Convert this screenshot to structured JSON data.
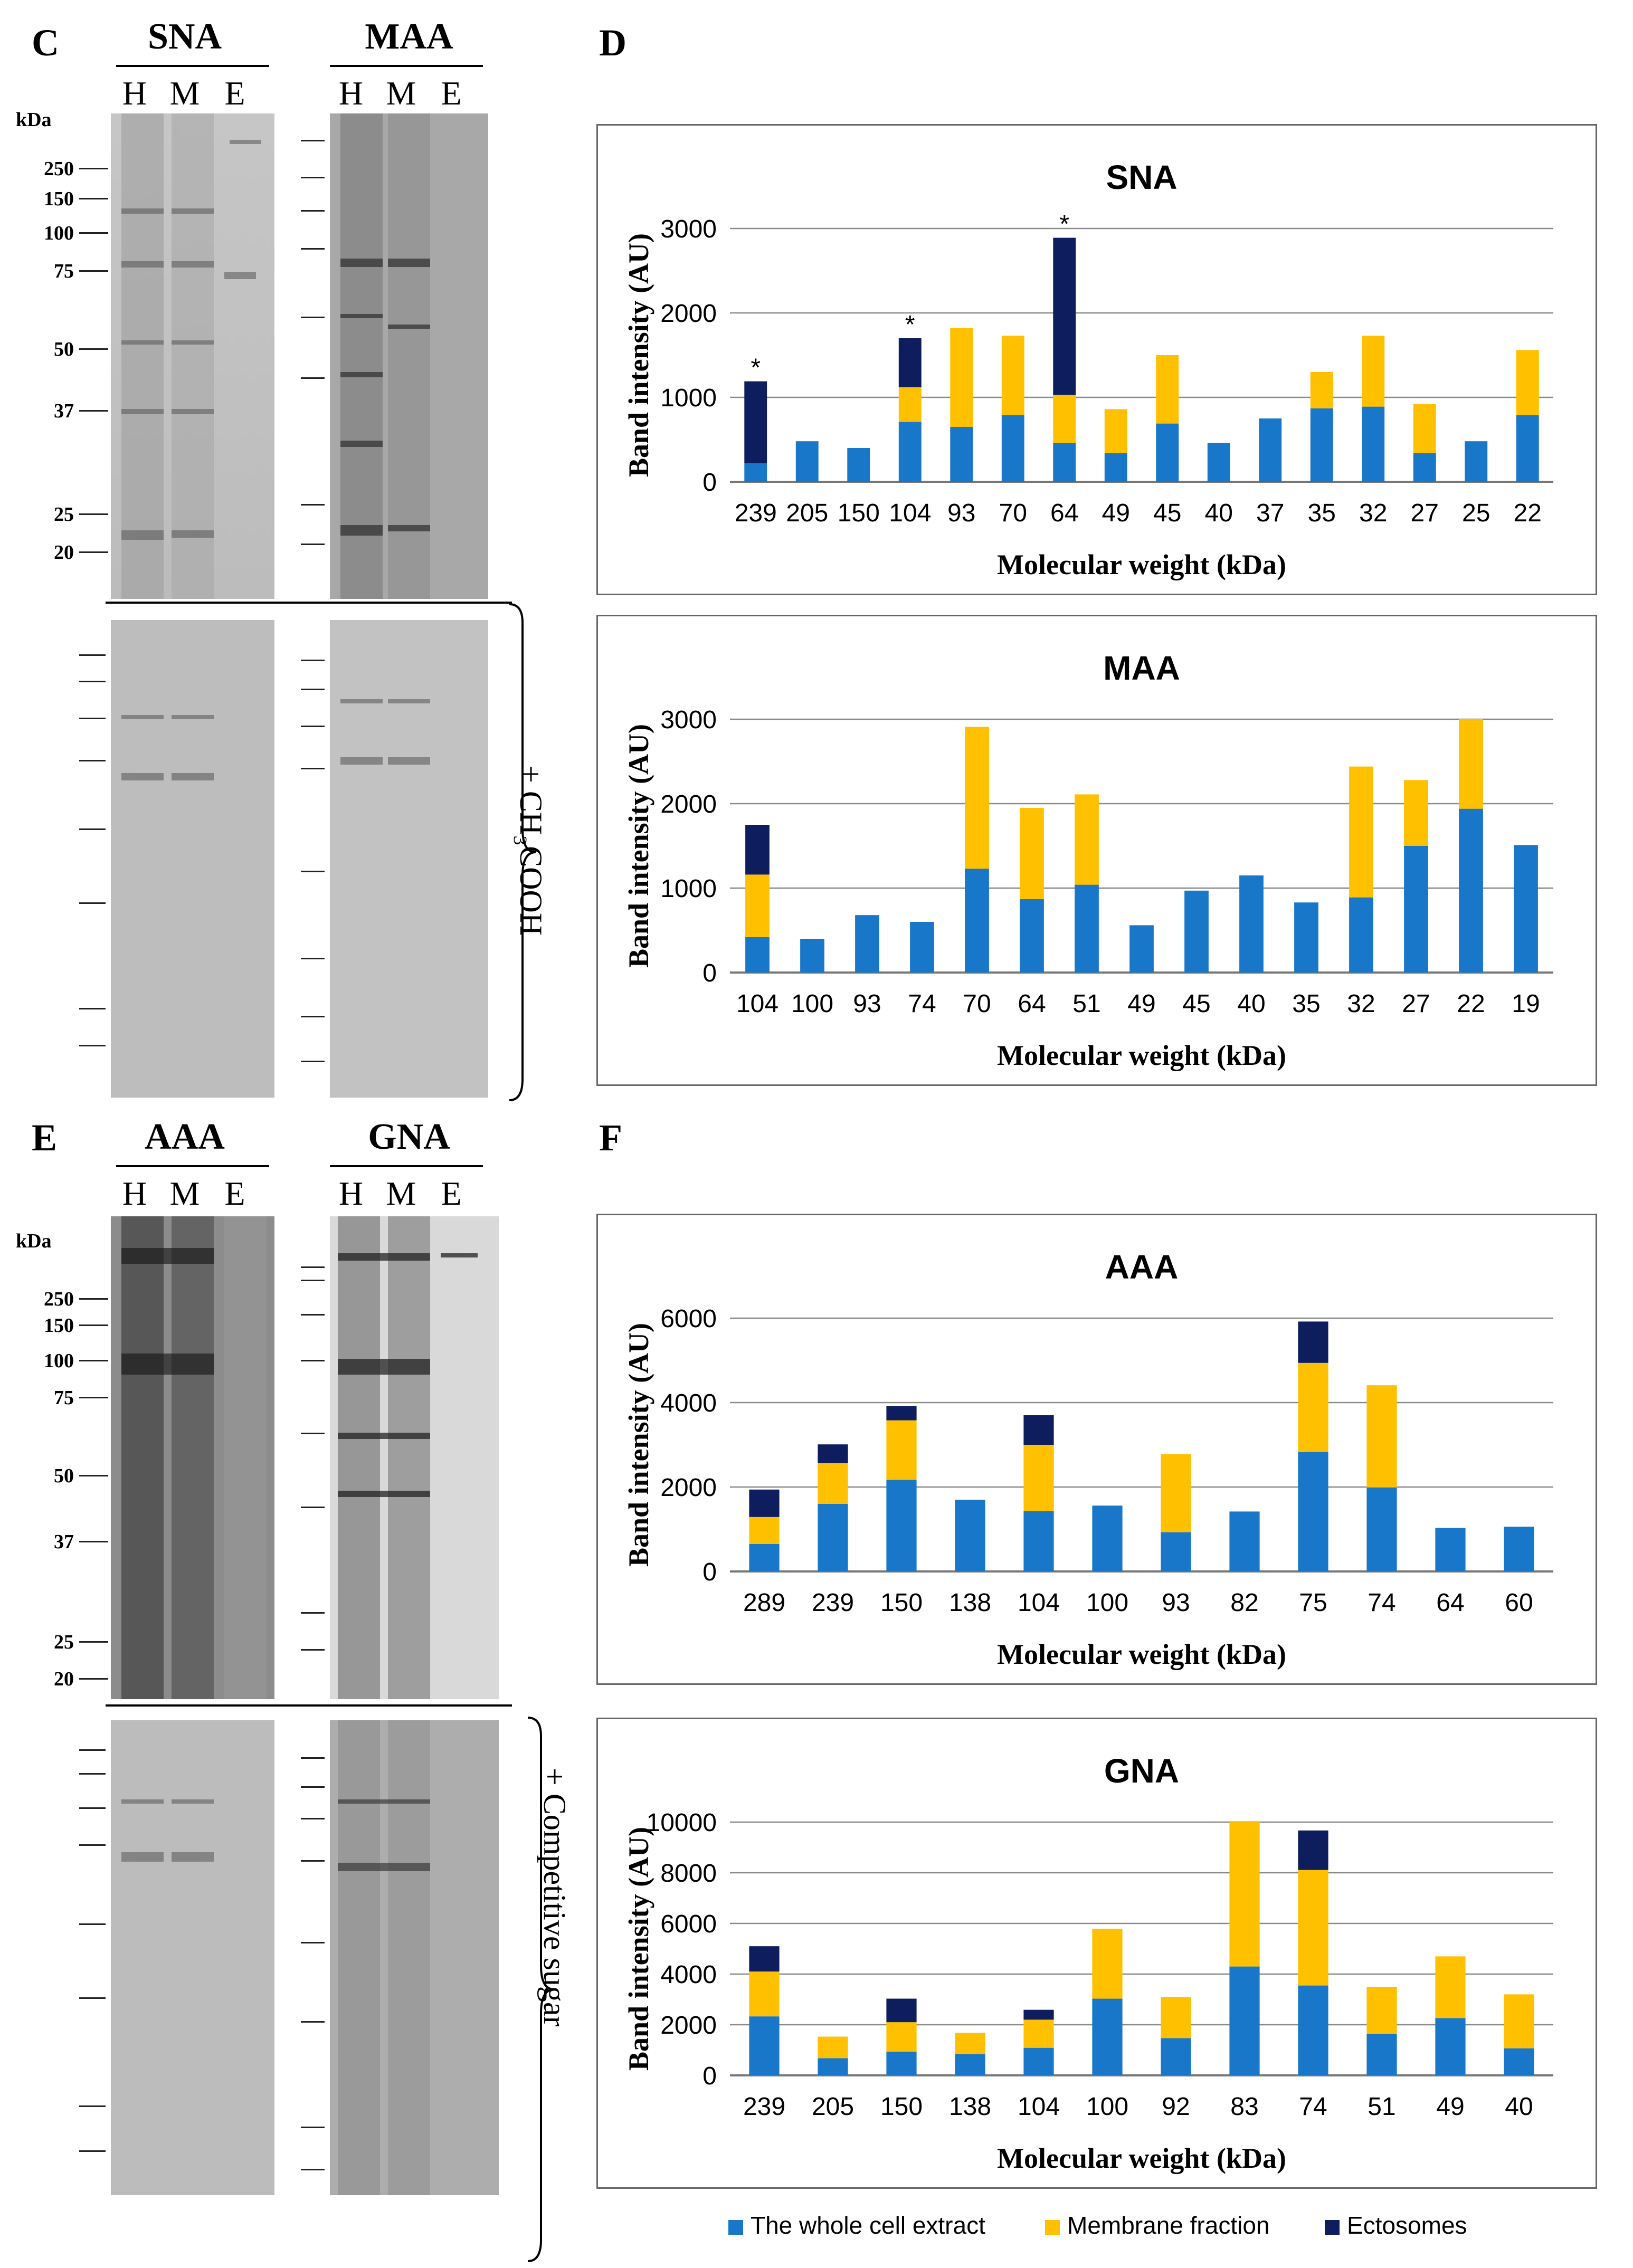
{
  "panels": {
    "C": "C",
    "D": "D",
    "E": "E",
    "F": "F"
  },
  "gels": {
    "lane_labels": [
      "H",
      "M",
      "E"
    ],
    "kda_unit": "kDa",
    "top_markers": [
      "250",
      "150",
      "100",
      "75",
      "50",
      "37",
      "25",
      "20"
    ],
    "C_left_title": "SNA",
    "C_right_title": "MAA",
    "E_left_title": "AAA",
    "E_right_title": "GNA",
    "C_treatment": "+ CH₃COOH",
    "E_treatment": "+ Competitive sugar"
  },
  "colors": {
    "whole": "#1877C9",
    "membrane": "#FFC000",
    "ectosomes": "#0D1D5E",
    "grid": "#8a8a8a"
  },
  "legend": {
    "items": [
      {
        "label": "The whole cell extract",
        "color": "#1877C9"
      },
      {
        "label": "Membrane fraction",
        "color": "#FFC000"
      },
      {
        "label": "Ectosomes",
        "color": "#0D1D5E"
      }
    ]
  },
  "chart_data": [
    {
      "type": "bar",
      "stacked": true,
      "title": "SNA",
      "xlabel": "Molecular weight (kDa)",
      "ylabel": "Band intensity (AU)",
      "ylim": [
        0,
        3000
      ],
      "yticks": [
        "0",
        "1000",
        "2000",
        "3000"
      ],
      "categories": [
        "239",
        "205",
        "150",
        "104",
        "93",
        "70",
        "64",
        "49",
        "45",
        "40",
        "37",
        "35",
        "32",
        "27",
        "25",
        "22"
      ],
      "series": [
        {
          "name": "The whole cell extract",
          "values": [
            220,
            480,
            400,
            710,
            650,
            790,
            460,
            340,
            690,
            460,
            750,
            870,
            890,
            340,
            480,
            790
          ]
        },
        {
          "name": "Membrane fraction",
          "values": [
            0,
            0,
            0,
            410,
            1170,
            940,
            570,
            520,
            810,
            0,
            0,
            430,
            840,
            580,
            0,
            770
          ]
        },
        {
          "name": "Ectosomes",
          "values": [
            970,
            0,
            0,
            580,
            0,
            0,
            1860,
            0,
            0,
            0,
            0,
            0,
            0,
            0,
            0,
            0
          ]
        }
      ],
      "annotations": [
        "*",
        "",
        "",
        "*",
        "",
        "",
        "*",
        "",
        "",
        "",
        "",
        "",
        "",
        "",
        "",
        ""
      ]
    },
    {
      "type": "bar",
      "stacked": true,
      "title": "MAA",
      "xlabel": "Molecular weight (kDa)",
      "ylabel": "Band intensity (AU)",
      "ylim": [
        0,
        3000
      ],
      "yticks": [
        "0",
        "1000",
        "2000",
        "3000"
      ],
      "categories": [
        "104",
        "100",
        "93",
        "74",
        "70",
        "64",
        "51",
        "49",
        "45",
        "40",
        "35",
        "32",
        "27",
        "22",
        "19"
      ],
      "series": [
        {
          "name": "The whole cell extract",
          "values": [
            420,
            400,
            680,
            600,
            1230,
            870,
            1040,
            560,
            970,
            1150,
            830,
            890,
            1500,
            1940,
            1510
          ]
        },
        {
          "name": "Membrane fraction",
          "values": [
            740,
            0,
            0,
            0,
            1680,
            1080,
            1070,
            0,
            0,
            0,
            0,
            1550,
            780,
            1060,
            0
          ]
        },
        {
          "name": "Ectosomes",
          "values": [
            590,
            0,
            0,
            0,
            0,
            0,
            0,
            0,
            0,
            0,
            0,
            0,
            0,
            0,
            0
          ]
        }
      ]
    },
    {
      "type": "bar",
      "stacked": true,
      "title": "AAA",
      "xlabel": "Molecular weight (kDa)",
      "ylabel": "Band intensity (AU)",
      "ylim": [
        0,
        6000
      ],
      "yticks": [
        "0",
        "2000",
        "4000",
        "6000"
      ],
      "categories": [
        "289",
        "239",
        "150",
        "138",
        "104",
        "100",
        "93",
        "82",
        "75",
        "74",
        "64",
        "60"
      ],
      "series": [
        {
          "name": "The whole cell extract",
          "values": [
            650,
            1600,
            2170,
            1700,
            1430,
            1560,
            930,
            1420,
            2830,
            1990,
            1030,
            1060
          ]
        },
        {
          "name": "Membrane fraction",
          "values": [
            640,
            970,
            1410,
            0,
            1570,
            0,
            1850,
            0,
            2110,
            2420,
            0,
            0
          ]
        },
        {
          "name": "Ectosomes",
          "values": [
            650,
            440,
            340,
            0,
            700,
            0,
            0,
            0,
            980,
            0,
            0,
            0
          ]
        }
      ]
    },
    {
      "type": "bar",
      "stacked": true,
      "title": "GNA",
      "xlabel": "Molecular weight (kDa)",
      "ylabel": "Band intensity (AU)",
      "ylim": [
        0,
        10000
      ],
      "yticks": [
        "0",
        "2000",
        "4000",
        "6000",
        "8000",
        "10000"
      ],
      "categories": [
        "239",
        "205",
        "150",
        "138",
        "104",
        "100",
        "92",
        "83",
        "74",
        "51",
        "49",
        "40"
      ],
      "series": [
        {
          "name": "The whole cell extract",
          "values": [
            2330,
            680,
            940,
            840,
            1090,
            3030,
            1470,
            4300,
            3550,
            1640,
            2260,
            1070
          ]
        },
        {
          "name": "Membrane fraction",
          "values": [
            1770,
            850,
            1160,
            840,
            1110,
            2760,
            1630,
            5700,
            4560,
            1860,
            2440,
            2130
          ]
        },
        {
          "name": "Ectosomes",
          "values": [
            1000,
            0,
            930,
            0,
            390,
            0,
            0,
            0,
            1560,
            0,
            0,
            0
          ]
        }
      ]
    }
  ]
}
